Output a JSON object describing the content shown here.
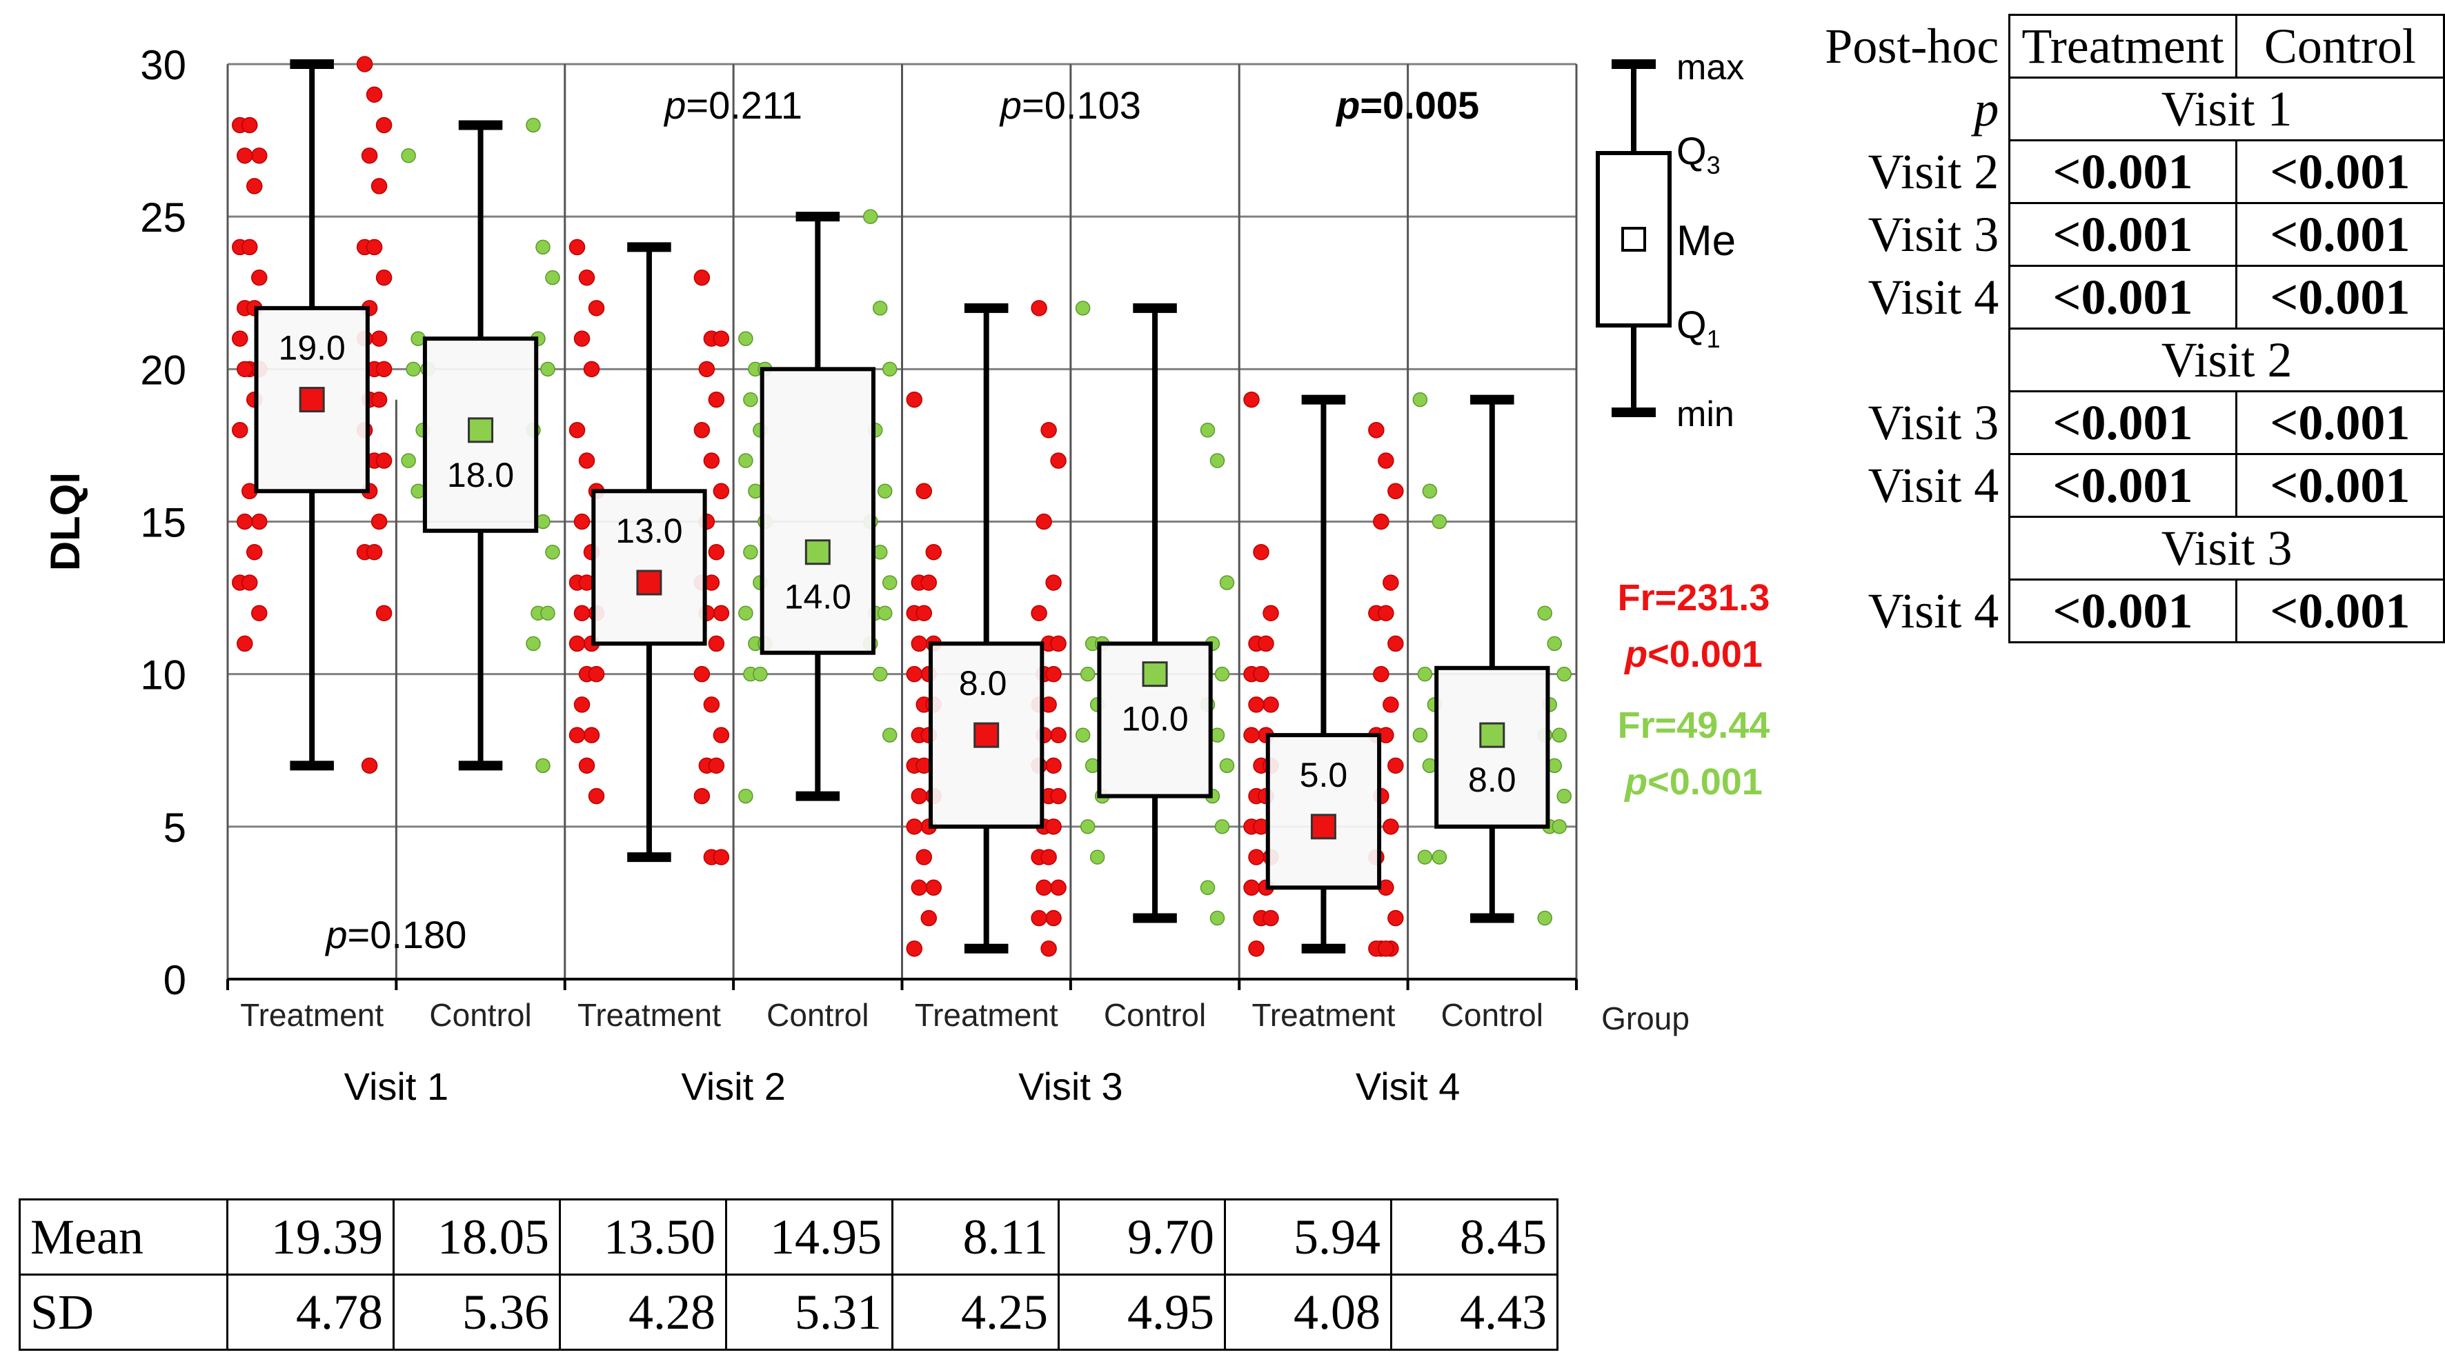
{
  "chart_data": {
    "type": "boxplot",
    "ylabel": "DLQI",
    "xlabel": "Group",
    "ylim": [
      0,
      30
    ],
    "yticks": [
      0,
      5,
      10,
      15,
      20,
      25,
      30
    ],
    "visits": [
      "Visit 1",
      "Visit 2",
      "Visit 3",
      "Visit 4"
    ],
    "groups": [
      "Treatment",
      "Control"
    ],
    "colors": {
      "Treatment": "#ee1111",
      "Control": "#8ccf4d",
      "axis": "#000000",
      "grid": "#808080"
    },
    "boxes": [
      {
        "visit": "Visit 1",
        "group": "Treatment",
        "min": 7,
        "q1": 16,
        "median": 19,
        "q3": 22,
        "max": 30,
        "median_label": "19.0"
      },
      {
        "visit": "Visit 1",
        "group": "Control",
        "min": 7,
        "q1": 14.7,
        "median": 18,
        "q3": 21,
        "max": 28,
        "median_label": "18.0"
      },
      {
        "visit": "Visit 2",
        "group": "Treatment",
        "min": 4,
        "q1": 11,
        "median": 13,
        "q3": 16,
        "max": 24,
        "median_label": "13.0"
      },
      {
        "visit": "Visit 2",
        "group": "Control",
        "min": 6,
        "q1": 10.7,
        "median": 14,
        "q3": 20,
        "max": 25,
        "median_label": "14.0"
      },
      {
        "visit": "Visit 3",
        "group": "Treatment",
        "min": 1,
        "q1": 5,
        "median": 8,
        "q3": 11,
        "max": 22,
        "median_label": "8.0"
      },
      {
        "visit": "Visit 3",
        "group": "Control",
        "min": 2,
        "q1": 6,
        "median": 10,
        "q3": 11,
        "max": 22,
        "median_label": "10.0"
      },
      {
        "visit": "Visit 4",
        "group": "Treatment",
        "min": 1,
        "q1": 3,
        "median": 5,
        "q3": 8,
        "max": 19,
        "median_label": "5.0"
      },
      {
        "visit": "Visit 4",
        "group": "Control",
        "min": 2,
        "q1": 5,
        "median": 8,
        "q3": 10.2,
        "max": 19,
        "median_label": "8.0"
      }
    ],
    "points": [
      {
        "left": [
          28,
          28,
          27,
          27,
          26,
          24,
          24,
          23,
          22,
          22,
          21,
          20,
          20,
          20,
          19,
          18,
          16,
          15,
          15,
          14,
          13,
          13,
          12,
          11
        ],
        "right": [
          30,
          29,
          28,
          27,
          26,
          24,
          24,
          23,
          22,
          21,
          21,
          20,
          20,
          19,
          19,
          18,
          17,
          17,
          16,
          15,
          14,
          14,
          12,
          7
        ]
      },
      {
        "left": [
          27,
          21,
          20,
          20,
          18,
          17,
          16
        ],
        "right": [
          28,
          24,
          23,
          21,
          20,
          18,
          15,
          14,
          12,
          12,
          11,
          7
        ]
      },
      {
        "left": [
          24,
          23,
          22,
          21,
          20,
          18,
          17,
          16,
          15,
          14,
          13,
          13,
          12,
          12,
          11,
          11,
          10,
          10,
          9,
          8,
          8,
          7,
          6
        ],
        "right": [
          23,
          21,
          21,
          20,
          19,
          18,
          17,
          16,
          15,
          14,
          13,
          13,
          12,
          12,
          11,
          10,
          9,
          8,
          7,
          7,
          6,
          4,
          4
        ]
      },
      {
        "left": [
          21,
          20,
          20,
          19,
          18,
          17,
          16,
          15,
          14,
          13,
          12,
          11,
          11,
          10,
          10,
          6
        ],
        "right": [
          25,
          22,
          20,
          18,
          16,
          15,
          14,
          13,
          12,
          12,
          11,
          10,
          8
        ]
      },
      {
        "left": [
          19,
          16,
          14,
          13,
          13,
          12,
          12,
          11,
          11,
          10,
          10,
          9,
          9,
          8,
          8,
          7,
          7,
          6,
          6,
          5,
          5,
          4,
          3,
          3,
          2,
          1
        ],
        "right": [
          22,
          18,
          17,
          15,
          13,
          12,
          11,
          11,
          10,
          10,
          9,
          9,
          8,
          8,
          7,
          7,
          6,
          6,
          5,
          5,
          4,
          4,
          3,
          3,
          2,
          2,
          1
        ]
      },
      {
        "left": [
          22,
          11,
          11,
          10,
          9,
          8,
          7,
          6,
          5,
          4
        ],
        "right": [
          18,
          17,
          13,
          11,
          10,
          9,
          8,
          7,
          6,
          5,
          3,
          2
        ]
      },
      {
        "left": [
          19,
          14,
          12,
          11,
          11,
          10,
          10,
          9,
          9,
          8,
          8,
          7,
          7,
          6,
          6,
          5,
          5,
          4,
          4,
          3,
          3,
          2,
          2,
          1
        ],
        "right": [
          18,
          17,
          16,
          15,
          13,
          12,
          12,
          11,
          10,
          9,
          8,
          8,
          7,
          6,
          5,
          4,
          3,
          2,
          1,
          1,
          1,
          1
        ]
      },
      {
        "left": [
          19,
          16,
          15,
          10,
          9,
          8,
          7,
          4,
          4
        ],
        "right": [
          12,
          11,
          10,
          9,
          8,
          8,
          7,
          6,
          5,
          5,
          2
        ]
      }
    ],
    "p_values": [
      {
        "visit": "Visit 1",
        "text": "p=0.180",
        "bold": false
      },
      {
        "visit": "Visit 2",
        "text": "p=0.211",
        "bold": false
      },
      {
        "visit": "Visit 3",
        "text": "p=0.103",
        "bold": false
      },
      {
        "visit": "Visit 4",
        "text": "p=0.005",
        "bold": true
      }
    ],
    "friedman": [
      {
        "group": "Treatment",
        "fr": "Fr=231.3",
        "p": "p<0.001"
      },
      {
        "group": "Control",
        "fr": "Fr=49.44",
        "p": "p<0.001"
      }
    ],
    "legend": {
      "max": "max",
      "q3": "Q3",
      "me": "Me",
      "q1": "Q1",
      "min": "min"
    }
  },
  "stats_table": {
    "rows": [
      {
        "label": "Mean",
        "values": [
          "19.39",
          "18.05",
          "13.50",
          "14.95",
          "8.11",
          "9.70",
          "5.94",
          "8.45"
        ]
      },
      {
        "label": "SD",
        "values": [
          "4.78",
          "5.36",
          "4.28",
          "5.31",
          "4.25",
          "4.95",
          "4.08",
          "4.43"
        ]
      }
    ]
  },
  "posthoc_table": {
    "corner": "Post-hoc",
    "p_label": "p",
    "columns": [
      "Treatment",
      "Control"
    ],
    "sections": [
      {
        "header": "Visit 1",
        "rows": [
          {
            "label": "Visit 2",
            "values": [
              "<0.001",
              "<0.001"
            ]
          },
          {
            "label": "Visit 3",
            "values": [
              "<0.001",
              "<0.001"
            ]
          },
          {
            "label": "Visit 4",
            "values": [
              "<0.001",
              "<0.001"
            ]
          }
        ]
      },
      {
        "header": "Visit 2",
        "rows": [
          {
            "label": "Visit 3",
            "values": [
              "<0.001",
              "<0.001"
            ]
          },
          {
            "label": "Visit 4",
            "values": [
              "<0.001",
              "<0.001"
            ]
          }
        ]
      },
      {
        "header": "Visit 3",
        "rows": [
          {
            "label": "Visit 4",
            "values": [
              "<0.001",
              "<0.001"
            ]
          }
        ]
      }
    ]
  }
}
